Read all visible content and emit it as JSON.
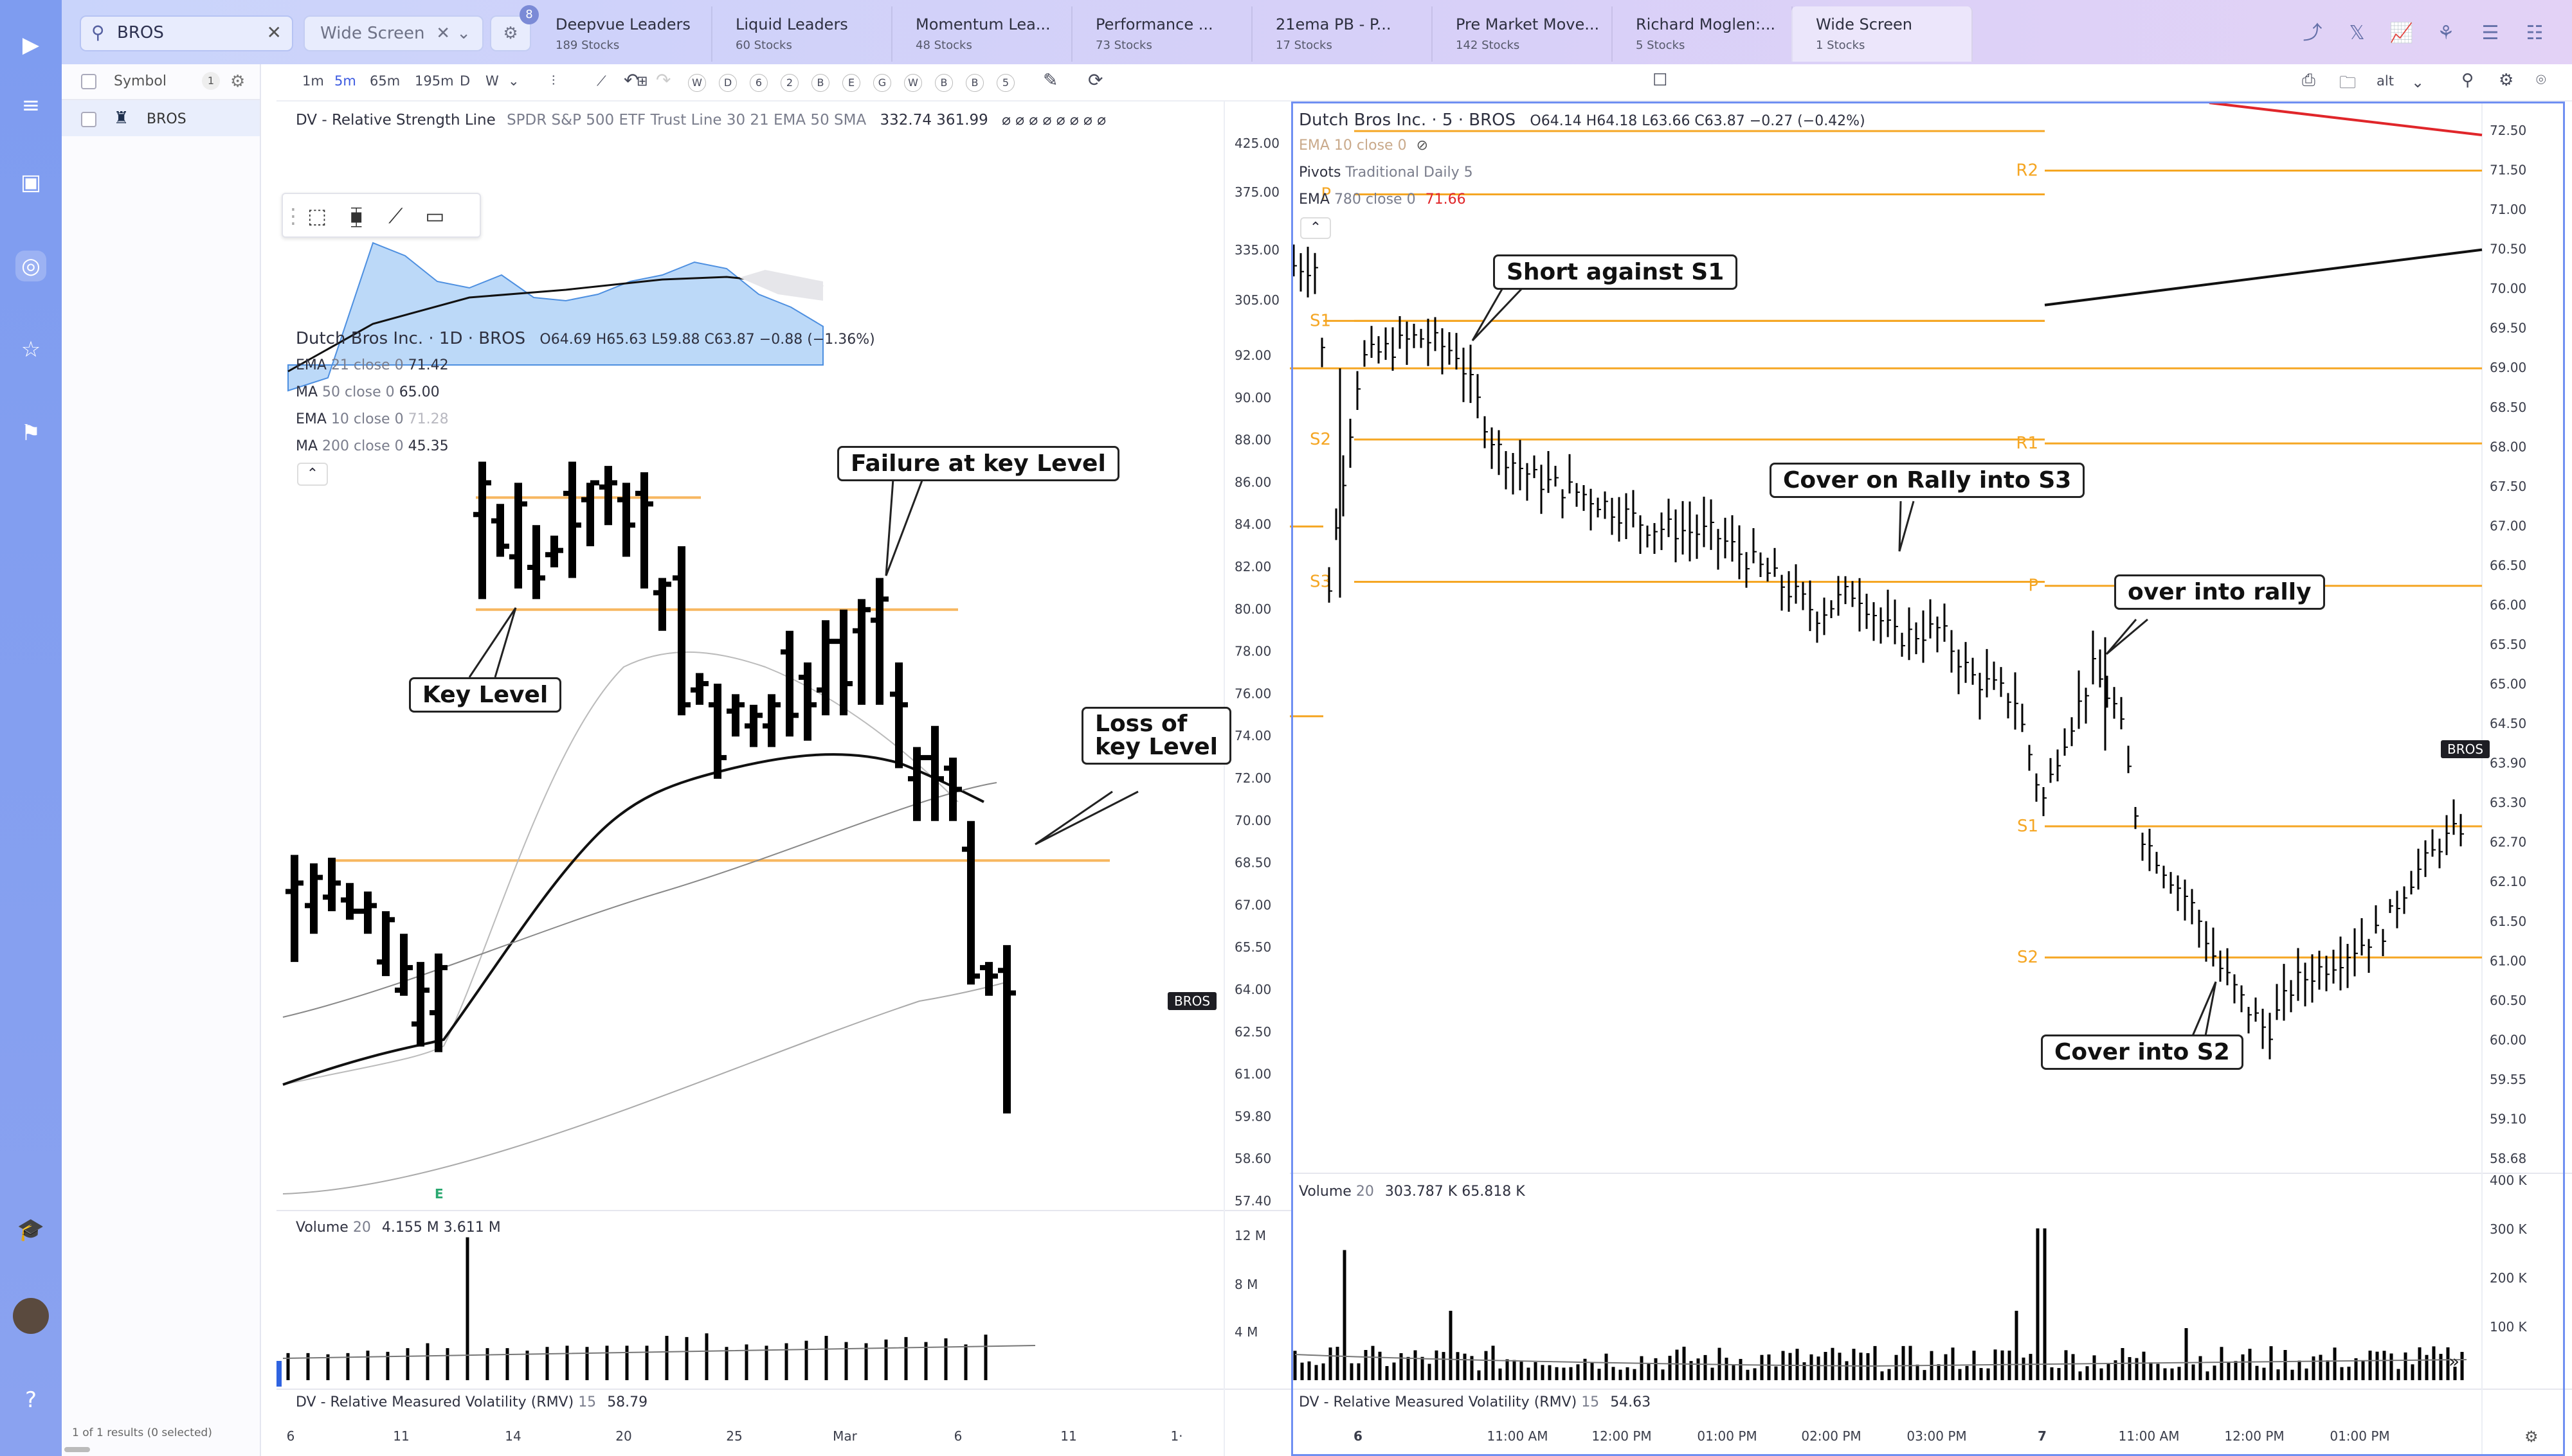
{
  "search": {
    "value": "BROS"
  },
  "screen_select": {
    "value": "Wide Screen"
  },
  "filter_badge": "8",
  "tabs": [
    {
      "name": "Deepvue Leaders",
      "count": "189 Stocks"
    },
    {
      "name": "Liquid Leaders",
      "count": "60 Stocks"
    },
    {
      "name": "Momentum Lea...",
      "count": "48 Stocks"
    },
    {
      "name": "Performance ...",
      "count": "73 Stocks"
    },
    {
      "name": "21ema PB - P...",
      "count": "17 Stocks"
    },
    {
      "name": "Pre Market Move...",
      "count": "142 Stocks"
    },
    {
      "name": "Richard Moglen:...",
      "count": "5 Stocks"
    },
    {
      "name": "Wide Screen",
      "count": "1 Stocks"
    }
  ],
  "list": {
    "header": "Symbol",
    "count": "1",
    "rows": [
      "BROS"
    ],
    "footer": "1 of 1 results (0 selected)"
  },
  "timeframes": [
    "1m",
    "5m",
    "65m",
    "195m",
    "D",
    "W"
  ],
  "tool_letters": [
    "W",
    "D",
    "6",
    "2",
    "B",
    "E",
    "G",
    "W",
    "B",
    "B",
    "5"
  ],
  "alt_label": "alt",
  "left": {
    "rsl_legend": "DV - Relative Strength Line",
    "rsl_sub": "SPDR S&P 500 ETF Trust Line 30 21 EMA 50 SMA",
    "rsl_vals": "332.74  361.99",
    "rsl_dots": "⌀ ⌀ ⌀ ⌀ ⌀ ⌀ ⌀ ⌀",
    "rsl_axis": [
      "425.00",
      "375.00",
      "335.00",
      "305.00"
    ],
    "title": "Dutch Bros Inc. · 1D · BROS",
    "ohlc": "O64.69  H65.63  L59.88  C63.87  −0.88 (−1.36%)",
    "studies": [
      {
        "name": "EMA",
        "params": "21 close 0",
        "value": "71.42"
      },
      {
        "name": "MA",
        "params": "50 close 0",
        "value": "65.00"
      },
      {
        "name": "EMA",
        "params": "10 close 0",
        "value": "71.28"
      },
      {
        "name": "MA",
        "params": "200 close 0",
        "value": "45.35"
      }
    ],
    "price_axis": [
      "92.00",
      "90.00",
      "88.00",
      "86.00",
      "84.00",
      "82.00",
      "80.00",
      "78.00",
      "76.00",
      "74.00",
      "72.00",
      "70.00",
      "68.50",
      "67.00",
      "65.50",
      "64.00",
      "62.50",
      "61.00",
      "59.80",
      "58.60",
      "57.40"
    ],
    "badge": "BROS",
    "earnings_marker": "E",
    "volume_legend": "Volume",
    "volume_params": "20",
    "volume_vals": "4.155 M  3.611 M",
    "volume_axis": [
      "12 M",
      "8 M",
      "4 M"
    ],
    "rmv_legend": "DV - Relative Measured Volatility (RMV)",
    "rmv_params": "15",
    "rmv_val": "58.79",
    "x_axis": [
      "6",
      "11",
      "14",
      "20",
      "25",
      "Mar",
      "6",
      "11",
      "1·"
    ],
    "callouts": {
      "key_level": "Key Level",
      "failure": "Failure at key Level",
      "loss_1": "Loss of",
      "loss_2": "key Level"
    }
  },
  "right": {
    "title": "Dutch Bros Inc. · 5 · BROS",
    "ohlc": "O64.14  H64.18  L63.66  C63.87  −0.27 (−0.42%)",
    "ema_hidden": "EMA 10 close 0",
    "pivots": "Pivots",
    "pivots_params": "Traditional Daily 5",
    "ema780": "EMA",
    "ema780_params": "780 close 0",
    "ema780_val": "71.66",
    "price_axis": [
      "72.50",
      "71.50",
      "71.00",
      "70.50",
      "70.00",
      "69.50",
      "69.00",
      "68.50",
      "68.00",
      "67.50",
      "67.00",
      "66.50",
      "66.00",
      "65.50",
      "65.00",
      "64.50",
      "63.90",
      "63.30",
      "62.70",
      "62.10",
      "61.50",
      "61.00",
      "60.50",
      "60.00",
      "59.55",
      "59.10",
      "58.68"
    ],
    "badge": "BROS",
    "pivot_labels": {
      "p": "P",
      "s1": "S1",
      "s2": "S2",
      "s3": "S3",
      "r1": "R1",
      "r2": "R2"
    },
    "volume_legend": "Volume",
    "volume_params": "20",
    "volume_vals": "303.787 K  65.818 K",
    "volume_axis": [
      "400 K",
      "300 K",
      "200 K",
      "100 K"
    ],
    "rmv_legend": "DV - Relative Measured Volatility (RMV)",
    "rmv_params": "15",
    "rmv_val": "54.63",
    "x_axis": [
      "6",
      "11:00 AM",
      "12:00 PM",
      "01:00 PM",
      "02:00 PM",
      "03:00 PM",
      "7",
      "11:00 AM",
      "12:00 PM",
      "01:00 PM"
    ],
    "callouts": {
      "short": "Short against S1",
      "cover_rally": "Cover on Rally into S3",
      "over_rally": "over into rally",
      "cover_s2": "Cover into S2"
    }
  },
  "colors": {
    "accent": "#7e9cf0",
    "pivot": "#f5a623",
    "rsl_fill": "#bcd9f8",
    "ema_red": "#e0262a"
  }
}
